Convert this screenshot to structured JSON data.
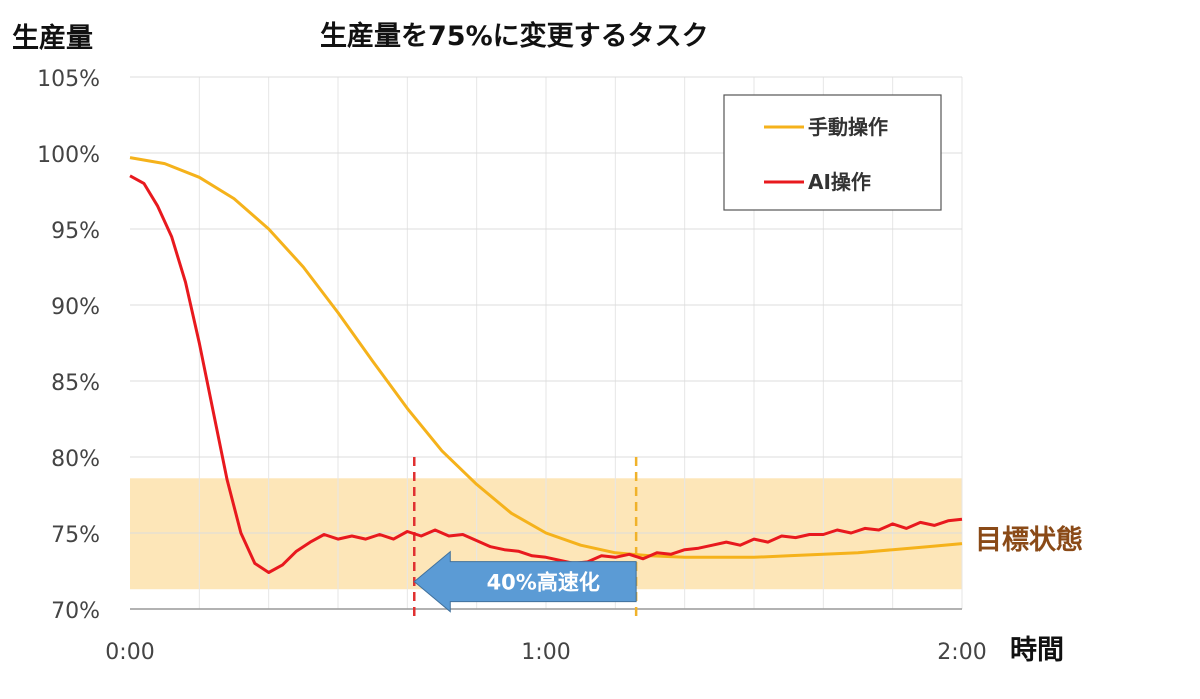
{
  "chart_data": {
    "type": "line",
    "title": "生産量を75%に変更するタスク",
    "ylabel": "生産量",
    "xlabel": "時間",
    "x_range_minutes": [
      0,
      120
    ],
    "ylim": [
      70,
      105
    ],
    "x_ticks": [
      {
        "value": 0,
        "label": "0:00"
      },
      {
        "value": 60,
        "label": "1:00"
      },
      {
        "value": 120,
        "label": "2:00"
      }
    ],
    "y_ticks": [
      {
        "value": 70,
        "label": "70%"
      },
      {
        "value": 75,
        "label": "75%"
      },
      {
        "value": 80,
        "label": "80%"
      },
      {
        "value": 85,
        "label": "85%"
      },
      {
        "value": 90,
        "label": "90%"
      },
      {
        "value": 95,
        "label": "95%"
      },
      {
        "value": 100,
        "label": "100%"
      },
      {
        "value": 105,
        "label": "105%"
      }
    ],
    "grid": true,
    "legend_placement": "top-right",
    "target_band": {
      "y_min": 71.3,
      "y_max": 78.6,
      "label": "目標状態",
      "color": "#fde6b8"
    },
    "markers": [
      {
        "x": 41,
        "color": "#e03030",
        "style": "dashed"
      },
      {
        "x": 73,
        "color": "#f0b22a",
        "style": "dashed"
      }
    ],
    "annotation": {
      "text": "40%高速化",
      "x_from": 73,
      "x_to": 41,
      "y": 71.8,
      "color": "#5b9bd5"
    },
    "series": [
      {
        "name": "手動操作",
        "color": "#f5b21b",
        "x": [
          0,
          5,
          10,
          15,
          20,
          25,
          30,
          35,
          40,
          45,
          50,
          55,
          60,
          65,
          70,
          75,
          80,
          85,
          90,
          95,
          100,
          105,
          110,
          115,
          120
        ],
        "y": [
          99.7,
          99.3,
          98.4,
          97.0,
          95.0,
          92.5,
          89.5,
          86.3,
          83.2,
          80.4,
          78.2,
          76.3,
          75.0,
          74.2,
          73.7,
          73.5,
          73.4,
          73.4,
          73.4,
          73.5,
          73.6,
          73.7,
          73.9,
          74.1,
          74.3
        ]
      },
      {
        "name": "AI操作",
        "color": "#e8191e",
        "x": [
          0,
          2,
          4,
          6,
          8,
          10,
          12,
          14,
          16,
          18,
          20,
          22,
          24,
          26,
          28,
          30,
          32,
          34,
          36,
          38,
          40,
          42,
          44,
          46,
          48,
          50,
          52,
          54,
          56,
          58,
          60,
          62,
          64,
          66,
          68,
          70,
          72,
          74,
          76,
          78,
          80,
          82,
          84,
          86,
          88,
          90,
          92,
          94,
          96,
          98,
          100,
          102,
          104,
          106,
          108,
          110,
          112,
          114,
          116,
          118,
          120
        ],
        "y": [
          98.5,
          98.0,
          96.5,
          94.5,
          91.5,
          87.5,
          83.0,
          78.5,
          75.0,
          73.0,
          72.4,
          72.9,
          73.8,
          74.4,
          74.9,
          74.6,
          74.8,
          74.6,
          74.9,
          74.6,
          75.1,
          74.8,
          75.2,
          74.8,
          74.9,
          74.5,
          74.1,
          73.9,
          73.8,
          73.5,
          73.4,
          73.2,
          73.0,
          73.1,
          73.5,
          73.4,
          73.6,
          73.3,
          73.7,
          73.6,
          73.9,
          74.0,
          74.2,
          74.4,
          74.2,
          74.6,
          74.4,
          74.8,
          74.7,
          74.9,
          74.9,
          75.2,
          75.0,
          75.3,
          75.2,
          75.6,
          75.3,
          75.7,
          75.5,
          75.8,
          75.9
        ]
      }
    ]
  }
}
